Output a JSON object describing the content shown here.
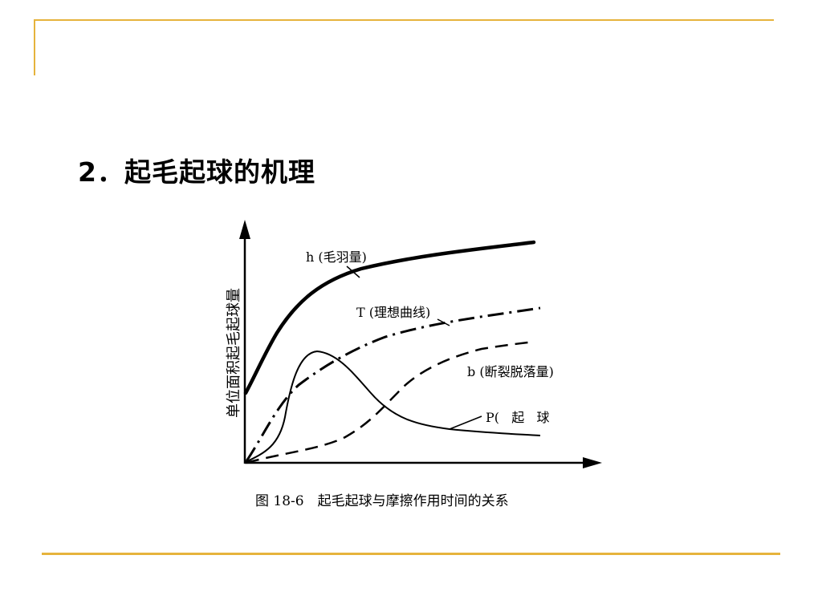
{
  "slide": {
    "title": "2．起毛起球的机理",
    "accent_color": "#E6B33C"
  },
  "figure": {
    "y_axis_label": "单位面积起毛起球量",
    "caption": "图 18-6　起毛起球与摩擦作用时间的关系",
    "curves": [
      {
        "id": "h",
        "label": "h (毛羽量)",
        "style": "thick-solid"
      },
      {
        "id": "T",
        "label": "T (理想曲线)",
        "style": "dash-dot"
      },
      {
        "id": "b",
        "label": "b (断裂脱落量)",
        "style": "dashed"
      },
      {
        "id": "P",
        "label": "P(   起   球",
        "style": "thin-solid"
      }
    ]
  }
}
